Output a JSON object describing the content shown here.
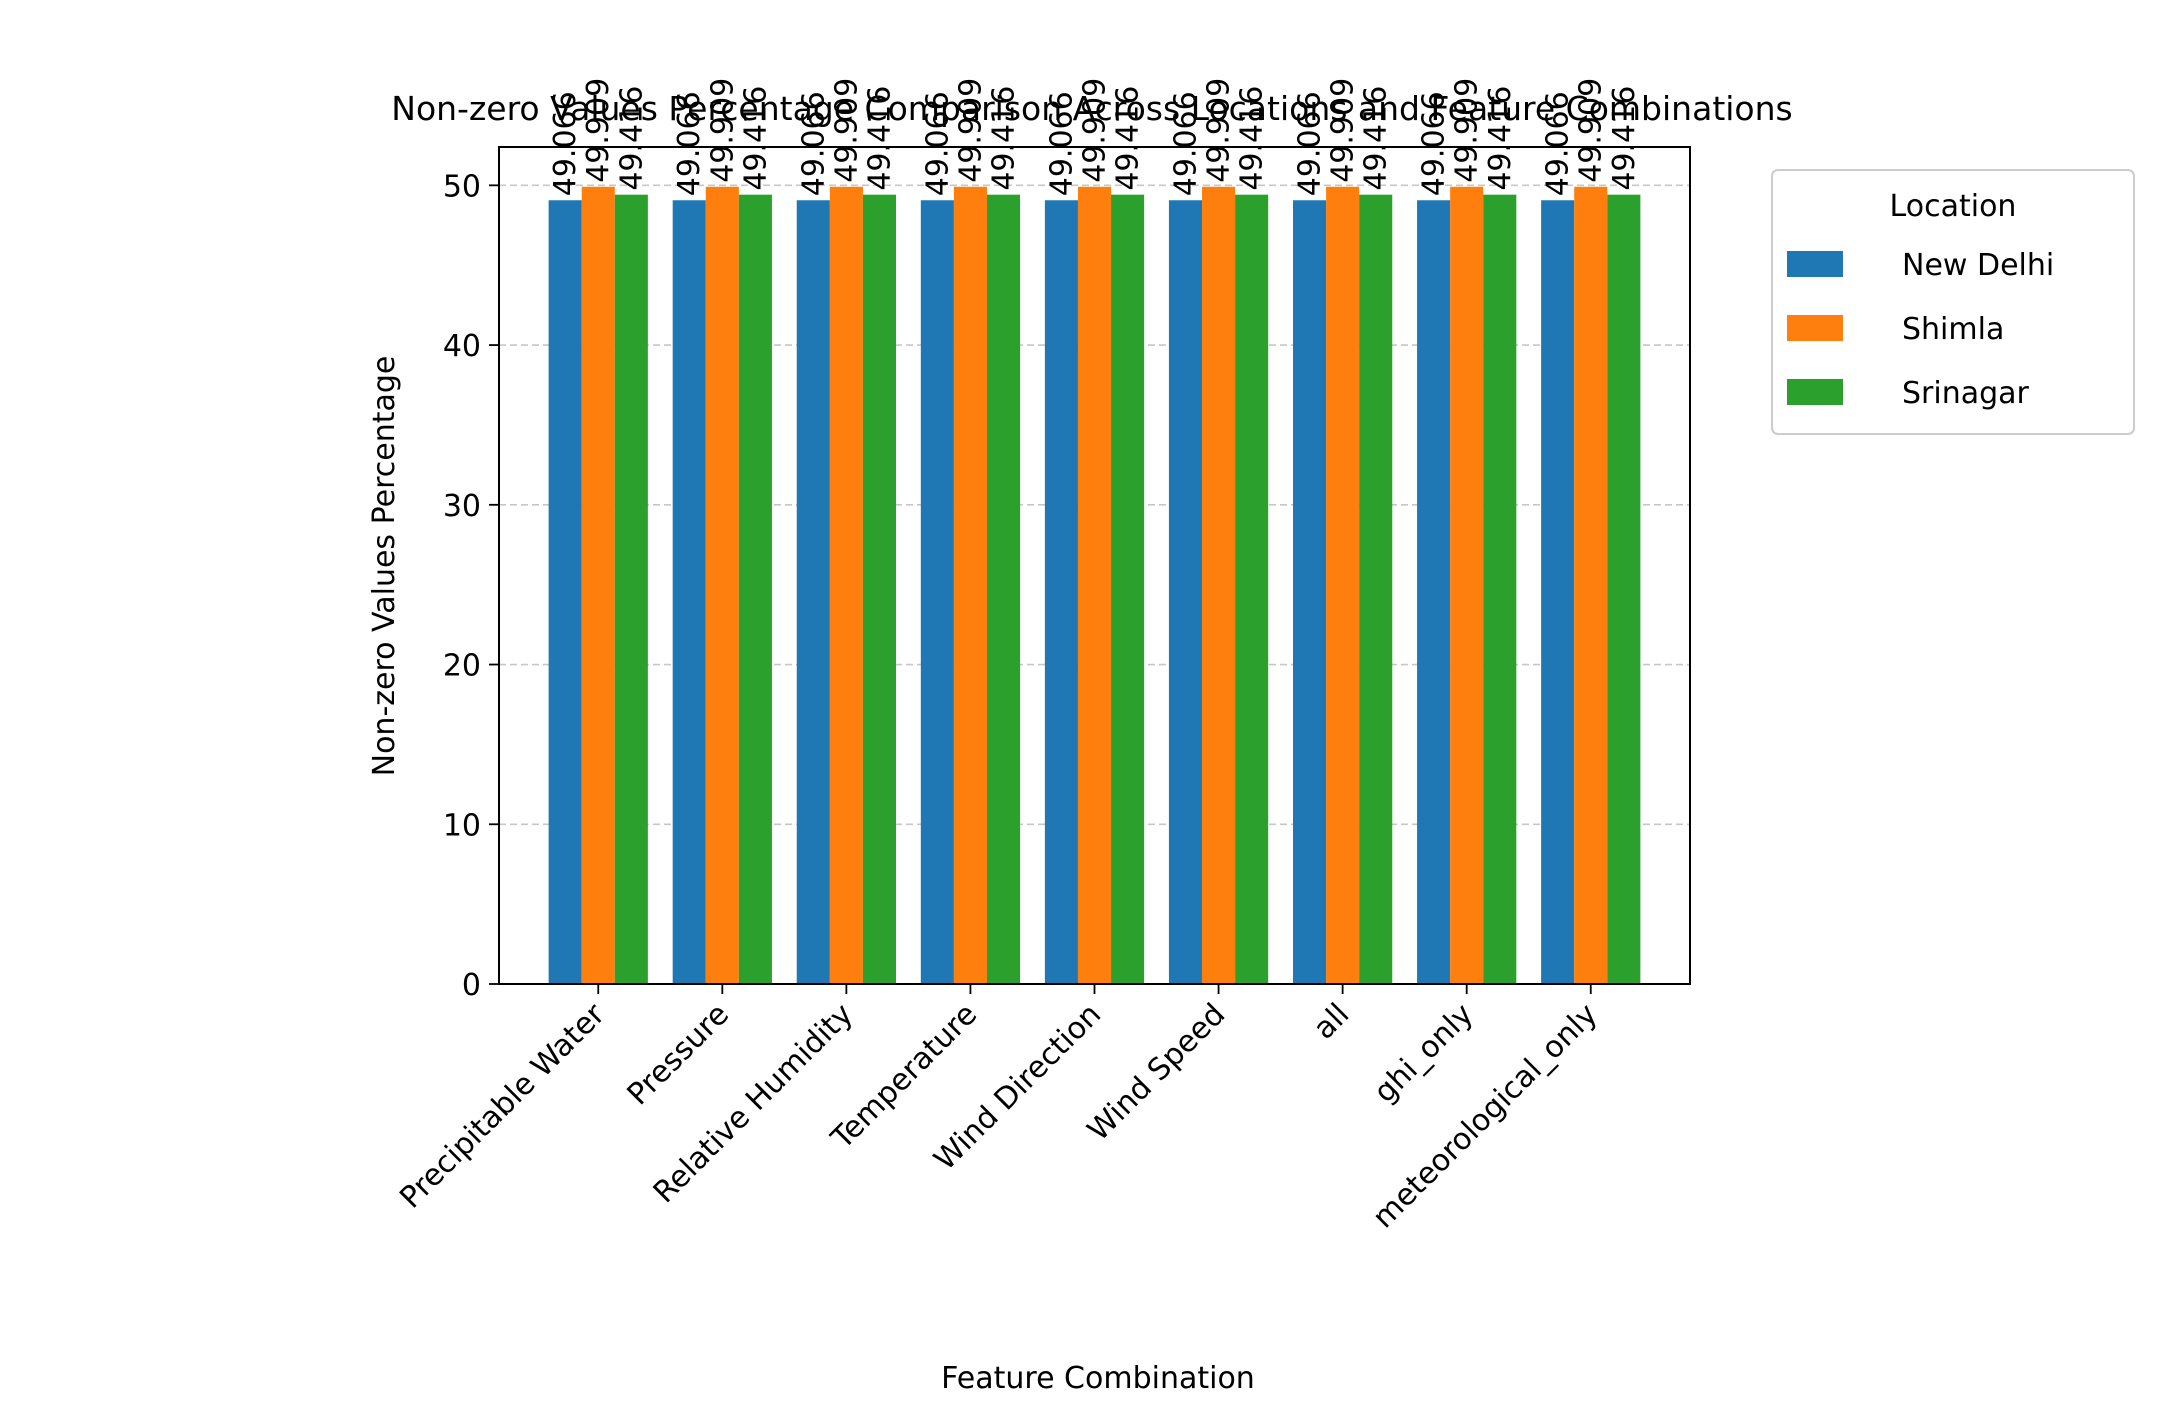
{
  "chart_data": {
    "type": "bar",
    "title": "Non-zero Values Percentage Comparison Across Locations and Feature Combinations",
    "xlabel": "Feature Combination",
    "ylabel": "Non-zero Values Percentage",
    "ylim": [
      0,
      52.4
    ],
    "yticks": [
      0,
      10,
      20,
      30,
      40,
      50
    ],
    "grid": "y dashed",
    "legend": {
      "title": "Location",
      "placement": "outside-right-top"
    },
    "categories": [
      "Precipitable Water",
      "Pressure",
      "Relative Humidity",
      "Temperature",
      "Wind Direction",
      "Wind Speed",
      "all",
      "ghi_only",
      "meteorological_only"
    ],
    "series": [
      {
        "name": "New Delhi",
        "color": "#1f77b4",
        "values": [
          49.066,
          49.066,
          49.066,
          49.066,
          49.066,
          49.066,
          49.066,
          49.066,
          49.066
        ],
        "labels": [
          "49.066",
          "49.066",
          "49.066",
          "49.066",
          "49.066",
          "49.066",
          "49.066",
          "49.066",
          "49.066"
        ]
      },
      {
        "name": "Shimla",
        "color": "#ff7f0e",
        "values": [
          49.909,
          49.909,
          49.909,
          49.909,
          49.909,
          49.909,
          49.909,
          49.909,
          49.909
        ],
        "labels": [
          "49.909",
          "49.909",
          "49.909",
          "49.909",
          "49.909",
          "49.909",
          "49.909",
          "49.909",
          "49.909"
        ]
      },
      {
        "name": "Srinagar",
        "color": "#2ca02c",
        "values": [
          49.416,
          49.416,
          49.416,
          49.416,
          49.416,
          49.416,
          49.416,
          49.416,
          49.416
        ],
        "labels": [
          "49.416",
          "49.416",
          "49.416",
          "49.416",
          "49.416",
          "49.416",
          "49.416",
          "49.416",
          "49.416"
        ]
      }
    ]
  }
}
